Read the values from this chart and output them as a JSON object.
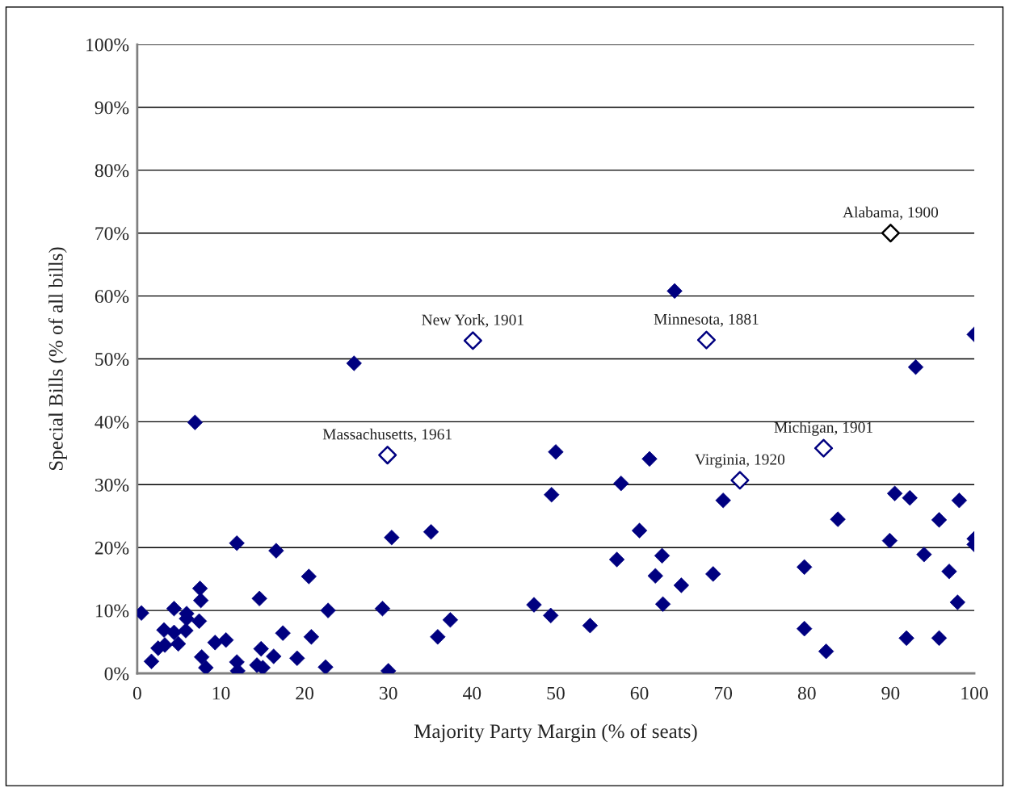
{
  "chart_data": {
    "type": "scatter",
    "xlabel": "Majority Party Margin (% of seats)",
    "ylabel": "Special Bills (% of all bills)",
    "xlim": [
      0,
      100
    ],
    "ylim": [
      0,
      100
    ],
    "xticks": [
      0,
      10,
      20,
      30,
      40,
      50,
      60,
      70,
      80,
      90,
      100
    ],
    "yticks": [
      {
        "value": 0,
        "label": "0%"
      },
      {
        "value": 10,
        "label": "10%"
      },
      {
        "value": 20,
        "label": "20%"
      },
      {
        "value": 30,
        "label": "30%"
      },
      {
        "value": 40,
        "label": "40%"
      },
      {
        "value": 50,
        "label": "50%"
      },
      {
        "value": 60,
        "label": "60%"
      },
      {
        "value": 70,
        "label": "70%"
      },
      {
        "value": 80,
        "label": "80%"
      },
      {
        "value": 90,
        "label": "90%"
      },
      {
        "value": 100,
        "label": "100%"
      }
    ],
    "grid": "y",
    "legend": false,
    "marker": "diamond",
    "series": [
      {
        "color": "#000080",
        "x": [
          0.5,
          1.7,
          2.5,
          3.2,
          3.3,
          4.4,
          4.4,
          4.9,
          5.8,
          5.9,
          5.9,
          6.9,
          7.4,
          7.5,
          7.6,
          7.7,
          8.2,
          9.3,
          10.6,
          11.9,
          11.9,
          12.0,
          14.3,
          14.6,
          14.8,
          15.0,
          16.3,
          16.6,
          17.4,
          19.1,
          20.5,
          20.8,
          22.5,
          22.8,
          25.9,
          29.3,
          30.0,
          30.4,
          35.1,
          35.9,
          37.4,
          47.4,
          49.4,
          49.5,
          50.0,
          54.1,
          57.3,
          57.8,
          60.0,
          61.2,
          61.9,
          62.7,
          62.8,
          64.2,
          65.0,
          68.8,
          70.0,
          79.7,
          79.7,
          82.3,
          83.7,
          89.9,
          90.5,
          91.9,
          92.3,
          93.0,
          94.0,
          95.8,
          95.8,
          97.0,
          98.0,
          98.2,
          100,
          100,
          100
        ],
        "values": [
          9.6,
          1.9,
          4.0,
          6.9,
          4.5,
          10.3,
          6.5,
          4.7,
          6.8,
          9.5,
          8.7,
          39.9,
          8.3,
          13.5,
          11.6,
          2.6,
          0.9,
          4.9,
          5.3,
          20.7,
          1.8,
          0.4,
          1.3,
          11.9,
          3.9,
          0.9,
          2.7,
          19.5,
          6.4,
          2.4,
          15.4,
          5.8,
          1.0,
          10.0,
          49.3,
          10.3,
          0.4,
          21.6,
          22.5,
          5.8,
          8.5,
          10.9,
          9.2,
          28.4,
          35.2,
          7.6,
          18.1,
          30.2,
          22.7,
          34.1,
          15.5,
          18.7,
          11.0,
          60.8,
          14.0,
          15.8,
          27.5,
          16.9,
          7.1,
          3.5,
          24.5,
          21.1,
          28.6,
          5.6,
          27.9,
          48.7,
          18.9,
          24.4,
          5.6,
          16.2,
          11.3,
          27.5,
          53.9,
          21.4,
          20.5
        ]
      },
      {
        "color": "#000080",
        "x": [
          29.9,
          40.1,
          68.0,
          72.0,
          82.0
        ],
        "values": [
          34.7,
          52.9,
          53.0,
          30.7,
          35.8
        ]
      },
      {
        "color": "#000000",
        "x": [
          90.0
        ],
        "values": [
          70.0
        ]
      }
    ],
    "annotations": [
      {
        "text": "Massachusetts, 1961",
        "x": 29.9,
        "y": 34.7
      },
      {
        "text": "New York, 1901",
        "x": 40.1,
        "y": 52.9
      },
      {
        "text": "Minnesota, 1881",
        "x": 68.0,
        "y": 53.0
      },
      {
        "text": "Virginia, 1920",
        "x": 72.0,
        "y": 30.7
      },
      {
        "text": "Michigan, 1901",
        "x": 82.0,
        "y": 35.8
      },
      {
        "text": "Alabama, 1900",
        "x": 90.0,
        "y": 70.0
      }
    ]
  }
}
